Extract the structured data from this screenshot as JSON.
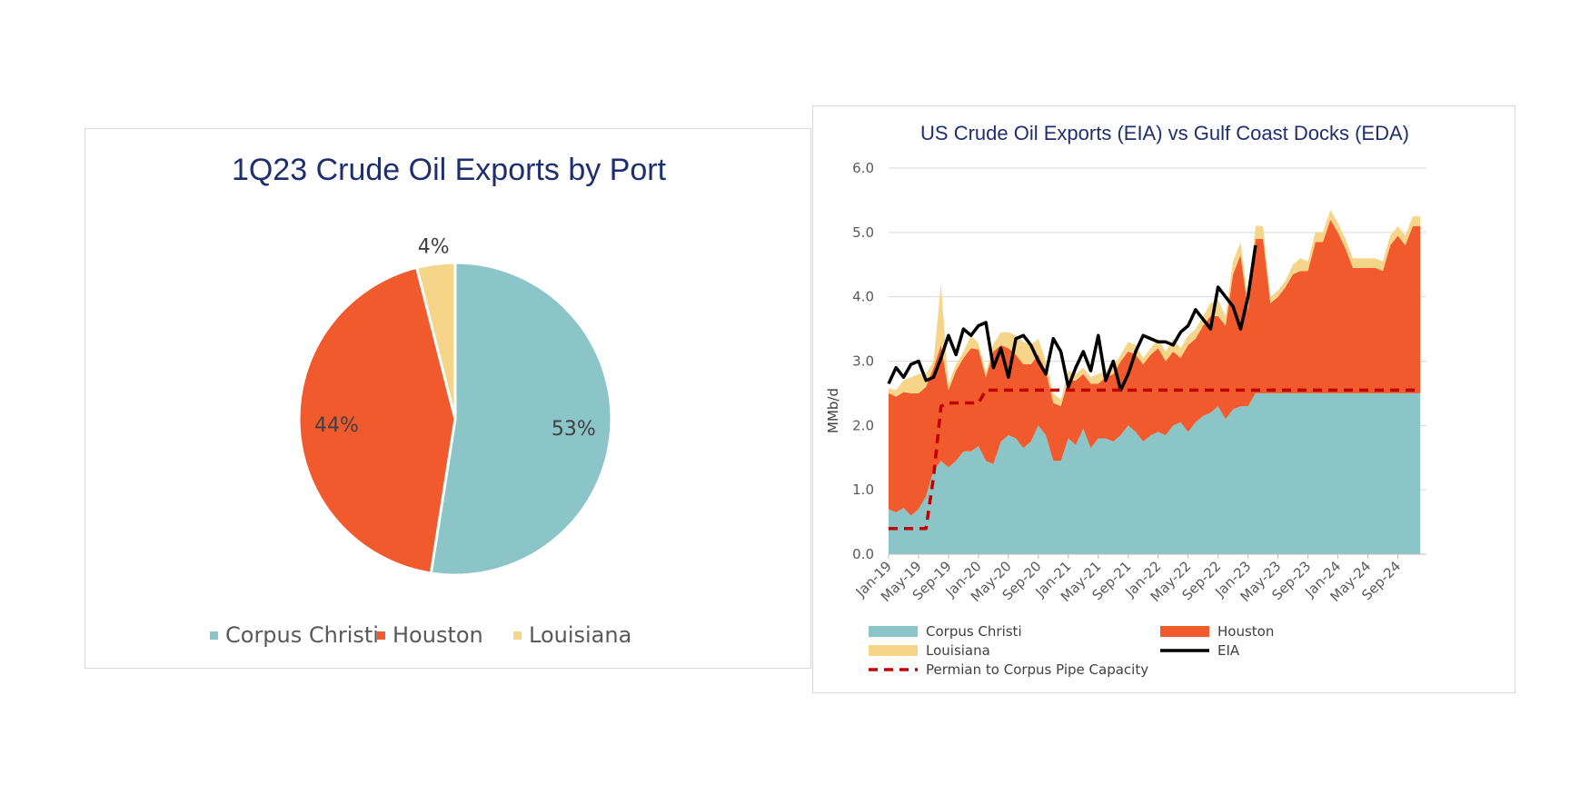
{
  "chart_data": [
    {
      "type": "pie",
      "title": "1Q23 Crude Oil Exports by Port",
      "categories": [
        "Corpus Christi",
        "Houston",
        "Louisiana"
      ],
      "values": [
        53,
        44,
        4
      ],
      "labels": [
        "53%",
        "44%",
        "4%"
      ],
      "colors": [
        "#8cc5c7",
        "#f05a2c",
        "#f5d58a"
      ],
      "legend": "bottom"
    },
    {
      "type": "area",
      "title": "US Crude Oil Exports (EIA) vs Gulf Coast Docks (EDA)",
      "ylabel": "MMb/d",
      "xlabel": "",
      "ylim": [
        0,
        6
      ],
      "yticks": [
        "0.0",
        "1.0",
        "2.0",
        "3.0",
        "4.0",
        "5.0",
        "6.0"
      ],
      "grid": true,
      "legend": "bottom",
      "x_start": "Jan-19",
      "x_tick_labels": [
        "Jan-19",
        "May-19",
        "Sep-19",
        "Jan-20",
        "May-20",
        "Sep-20",
        "Jan-21",
        "May-21",
        "Sep-21",
        "Jan-22",
        "May-22",
        "Sep-22",
        "Jan-23",
        "May-23",
        "Sep-23",
        "Jan-24",
        "May-24",
        "Sep-24"
      ],
      "series": [
        {
          "name": "Corpus Christi",
          "kind": "stacked-area",
          "color": "#8cc5c7",
          "values": [
            0.7,
            0.65,
            0.72,
            0.6,
            0.7,
            0.9,
            1.3,
            1.45,
            1.35,
            1.45,
            1.6,
            1.6,
            1.68,
            1.45,
            1.4,
            1.75,
            1.85,
            1.8,
            1.65,
            1.75,
            2.0,
            1.85,
            1.45,
            1.45,
            1.8,
            1.7,
            1.95,
            1.65,
            1.8,
            1.8,
            1.75,
            1.85,
            2.0,
            1.9,
            1.75,
            1.85,
            1.9,
            1.85,
            2.0,
            2.05,
            1.9,
            2.05,
            2.15,
            2.2,
            2.3,
            2.1,
            2.25,
            2.3,
            2.3,
            2.5,
            2.5,
            2.5,
            2.5,
            2.5,
            2.5,
            2.5,
            2.5,
            2.5,
            2.5,
            2.5,
            2.5,
            2.5,
            2.5,
            2.5,
            2.5,
            2.5,
            2.5,
            2.5,
            2.5,
            2.5,
            2.5,
            2.5
          ]
        },
        {
          "name": "Houston",
          "kind": "stacked-area",
          "color": "#f05a2c",
          "values": [
            1.8,
            1.8,
            1.8,
            1.9,
            1.8,
            1.7,
            1.6,
            1.8,
            1.2,
            1.4,
            1.45,
            1.6,
            1.5,
            1.3,
            1.75,
            1.5,
            1.35,
            1.3,
            1.3,
            1.2,
            1.1,
            1.0,
            0.9,
            0.85,
            0.9,
            1.0,
            0.85,
            1.0,
            0.85,
            0.95,
            1.05,
            1.15,
            1.15,
            1.2,
            1.2,
            1.25,
            1.3,
            1.15,
            1.15,
            1.0,
            1.35,
            1.3,
            1.4,
            1.5,
            1.4,
            1.45,
            2.1,
            2.35,
            1.5,
            2.4,
            2.4,
            1.4,
            1.5,
            1.65,
            1.85,
            1.9,
            1.9,
            2.35,
            2.35,
            2.7,
            2.5,
            2.25,
            1.95,
            1.95,
            1.95,
            1.95,
            1.9,
            2.3,
            2.45,
            2.3,
            2.6,
            2.6
          ]
        },
        {
          "name": "Louisiana",
          "kind": "stacked-area",
          "color": "#f5d58a",
          "values": [
            0.08,
            0.1,
            0.18,
            0.25,
            0.3,
            0.2,
            0.1,
            0.95,
            0.1,
            0.1,
            0.1,
            0.2,
            0.1,
            0.08,
            0.12,
            0.2,
            0.25,
            0.3,
            0.35,
            0.3,
            0.25,
            0.15,
            0.15,
            0.1,
            0.15,
            0.1,
            0.1,
            0.1,
            0.15,
            0.1,
            0.12,
            0.1,
            0.15,
            0.15,
            0.1,
            0.1,
            0.15,
            0.15,
            0.2,
            0.15,
            0.15,
            0.15,
            0.15,
            0.2,
            0.25,
            0.15,
            0.2,
            0.2,
            0.15,
            0.2,
            0.2,
            0.1,
            0.1,
            0.1,
            0.15,
            0.2,
            0.15,
            0.15,
            0.15,
            0.15,
            0.15,
            0.15,
            0.15,
            0.15,
            0.15,
            0.15,
            0.15,
            0.15,
            0.15,
            0.15,
            0.15,
            0.15
          ]
        },
        {
          "name": "EIA",
          "kind": "line",
          "color": "#000000",
          "values": [
            2.65,
            2.9,
            2.75,
            2.95,
            3.0,
            2.7,
            2.75,
            3.05,
            3.4,
            3.1,
            3.5,
            3.4,
            3.55,
            3.6,
            2.9,
            3.2,
            2.75,
            3.35,
            3.4,
            3.25,
            3.0,
            2.8,
            3.35,
            3.15,
            2.6,
            2.9,
            3.15,
            2.85,
            3.4,
            2.7,
            3.0,
            2.55,
            2.8,
            3.15,
            3.4,
            3.35,
            3.3,
            3.3,
            3.25,
            3.45,
            3.55,
            3.8,
            3.65,
            3.5,
            4.15,
            4.0,
            3.85,
            3.5,
            4.0,
            4.8
          ]
        },
        {
          "name": "Permian to Corpus Pipe Capacity",
          "kind": "dashed-line",
          "color": "#c00000",
          "values": [
            0.4,
            0.4,
            0.4,
            0.4,
            0.4,
            0.4,
            1.2,
            2.3,
            2.35,
            2.35,
            2.35,
            2.35,
            2.35,
            2.55,
            2.55,
            2.55,
            2.55,
            2.55,
            2.55,
            2.55,
            2.55,
            2.55,
            2.55,
            2.55,
            2.55,
            2.55,
            2.55,
            2.55,
            2.55,
            2.55,
            2.55,
            2.55,
            2.55,
            2.55,
            2.55,
            2.55,
            2.55,
            2.55,
            2.55,
            2.55,
            2.55,
            2.55,
            2.55,
            2.55,
            2.55,
            2.55,
            2.55,
            2.55,
            2.55,
            2.55,
            2.55,
            2.55,
            2.55,
            2.55,
            2.55,
            2.55,
            2.55,
            2.55,
            2.55,
            2.55,
            2.55,
            2.55,
            2.55,
            2.55,
            2.55,
            2.55,
            2.55,
            2.55,
            2.55,
            2.55,
            2.55,
            2.55
          ]
        }
      ]
    }
  ]
}
